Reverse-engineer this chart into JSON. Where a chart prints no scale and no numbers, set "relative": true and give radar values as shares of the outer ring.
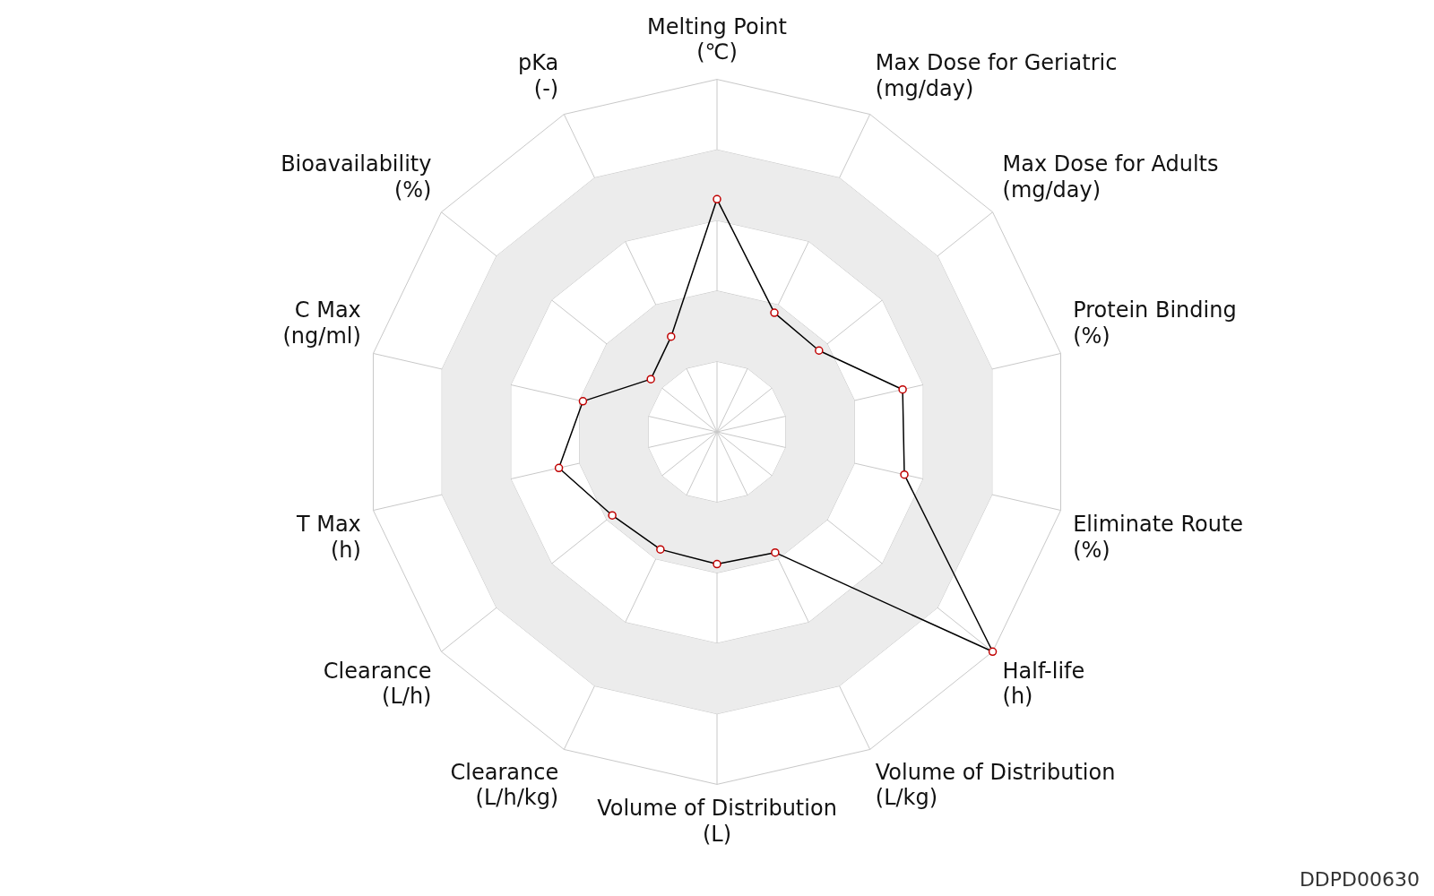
{
  "chart_data": {
    "type": "radar",
    "relative": true,
    "categories": [
      "Melting Point\n(℃)",
      "Max Dose for Geriatric\n(mg/day)",
      "Max Dose for Adults\n(mg/day)",
      "Protein Binding\n(%)",
      "Eliminate Route\n(%)",
      "Half-life\n(h)",
      "Volume of Distribution\n(L/kg)",
      "Volume of Distribution\n(L)",
      "Clearance\n(L/h/kg)",
      "Clearance\n(L/h)",
      "T Max\n(h)",
      "C Max\n(ng/ml)",
      "Bioavailability\n(%)",
      "pKa\n(-)"
    ],
    "series": [
      {
        "color": "#000000",
        "values": [
          0.66,
          0.375,
          0.37,
          0.54,
          0.545,
          1.0,
          0.38,
          0.375,
          0.37,
          0.38,
          0.46,
          0.39,
          0.24,
          0.3
        ]
      }
    ],
    "marker": "circle",
    "grid": true,
    "legend": false,
    "annotations": [
      "DDPD00630"
    ]
  }
}
